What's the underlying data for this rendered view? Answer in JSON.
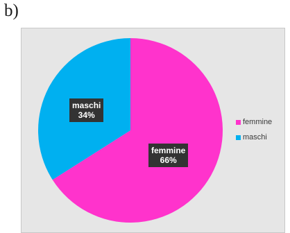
{
  "panel_label": "b)",
  "colors": {
    "background": "#e6e6e6",
    "femmine": "#ff33cc",
    "maschi": "#00b0f0",
    "label_box": "#333333"
  },
  "chart_data": {
    "type": "pie",
    "title": "",
    "slices": [
      {
        "name": "femmine",
        "value": 66,
        "label_name": "femmine",
        "label_pct": "66%",
        "color": "#ff33cc"
      },
      {
        "name": "maschi",
        "value": 34,
        "label_name": "maschi",
        "label_pct": "34%",
        "color": "#00b0f0"
      }
    ],
    "legend": {
      "position": "right",
      "entries": [
        "femmine",
        "maschi"
      ]
    }
  }
}
